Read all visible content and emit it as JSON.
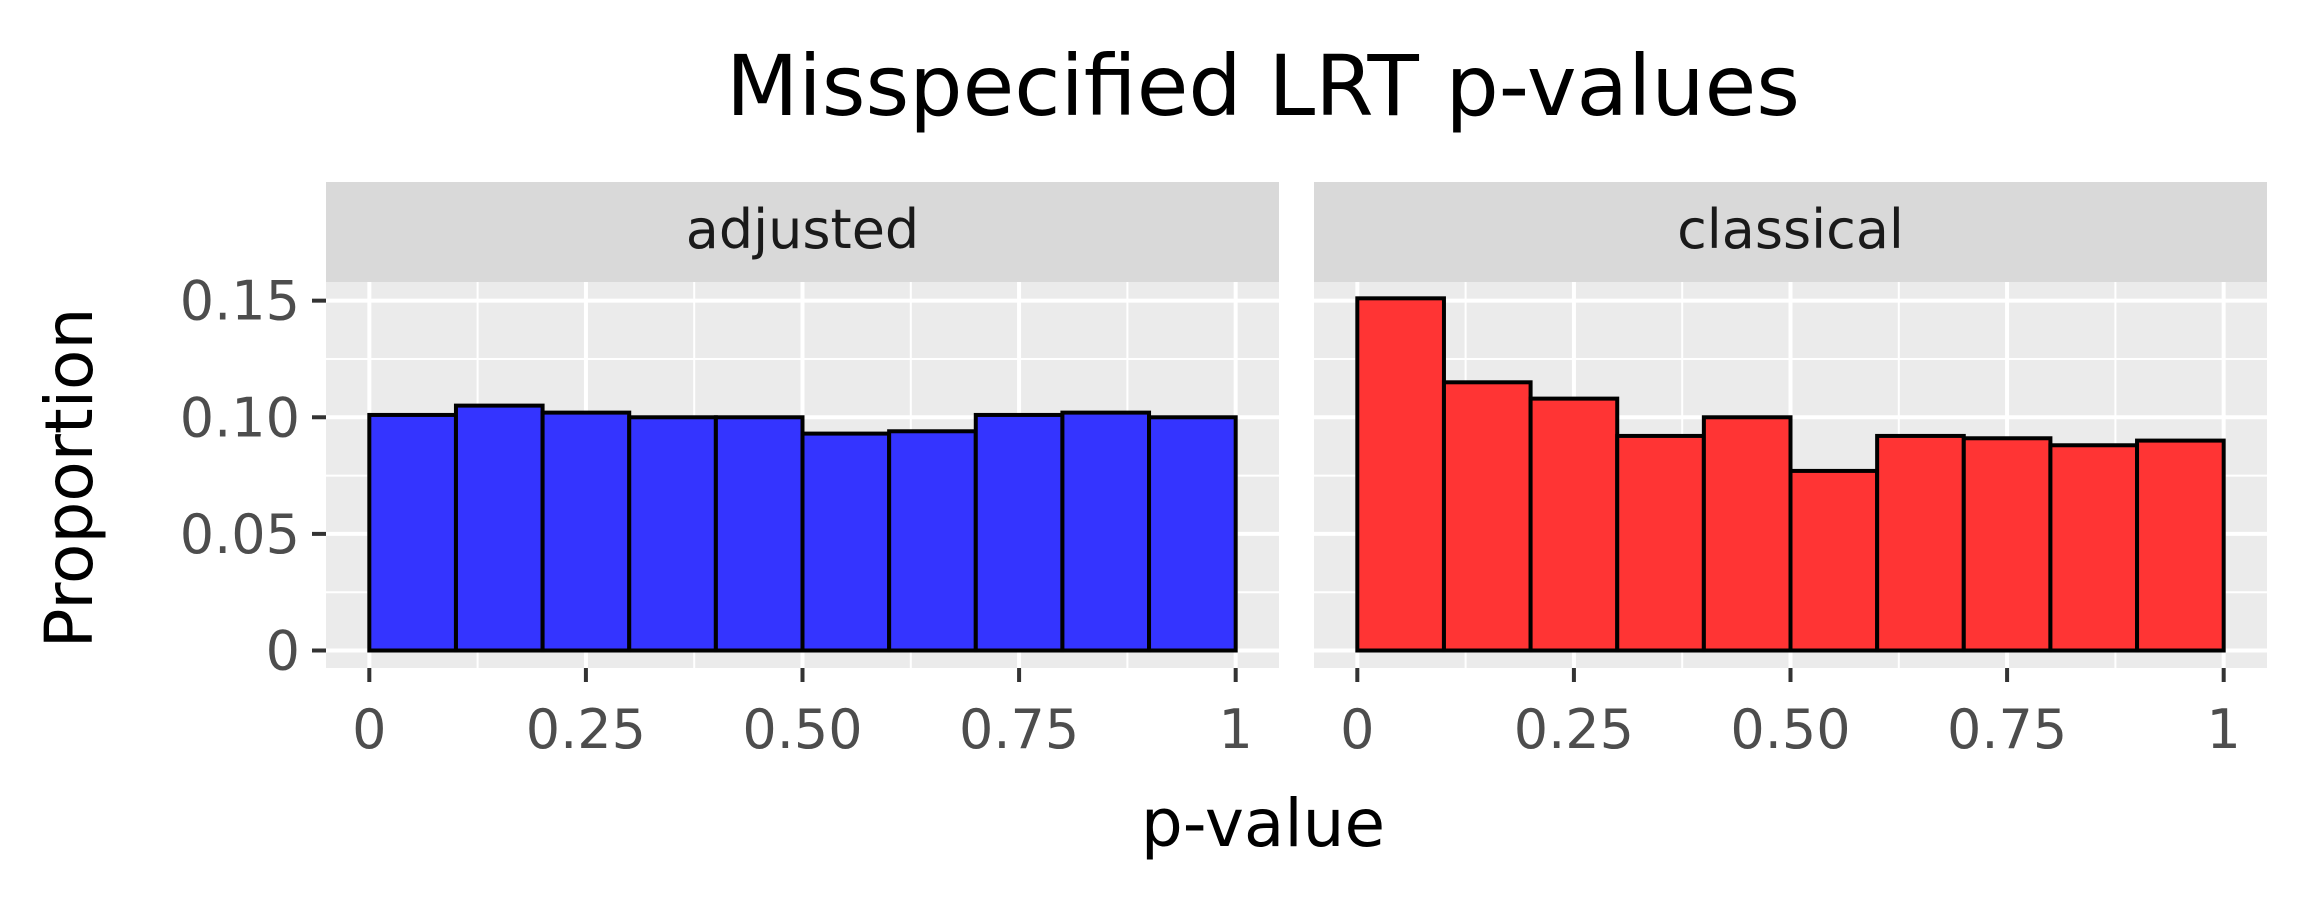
{
  "chart_data": {
    "type": "bar",
    "title": "Misspecified LRT p-values",
    "xlabel": "p-value",
    "ylabel": "Proportion",
    "xlim": [
      -0.05,
      1.05
    ],
    "ylim": [
      -0.0075,
      0.158
    ],
    "x_ticks": [
      0,
      0.25,
      0.5,
      0.75,
      1
    ],
    "x_tick_labels": [
      "0",
      "0.25",
      "0.50",
      "0.75",
      "1"
    ],
    "y_ticks": [
      0,
      0.05,
      0.1,
      0.15
    ],
    "y_tick_labels": [
      "0",
      "0.05",
      "0.10",
      "0.15"
    ],
    "bin_edges": [
      0,
      0.1,
      0.2,
      0.3,
      0.4,
      0.5,
      0.6,
      0.7,
      0.8,
      0.9,
      1.0
    ],
    "grid": true,
    "facets": [
      {
        "name": "adjusted",
        "color": "#3333ff",
        "values": [
          0.101,
          0.105,
          0.102,
          0.1,
          0.1,
          0.093,
          0.094,
          0.101,
          0.102,
          0.1
        ]
      },
      {
        "name": "classical",
        "color": "#ff3333",
        "values": [
          0.151,
          0.115,
          0.108,
          0.092,
          0.1,
          0.077,
          0.092,
          0.091,
          0.088,
          0.09
        ]
      }
    ]
  }
}
